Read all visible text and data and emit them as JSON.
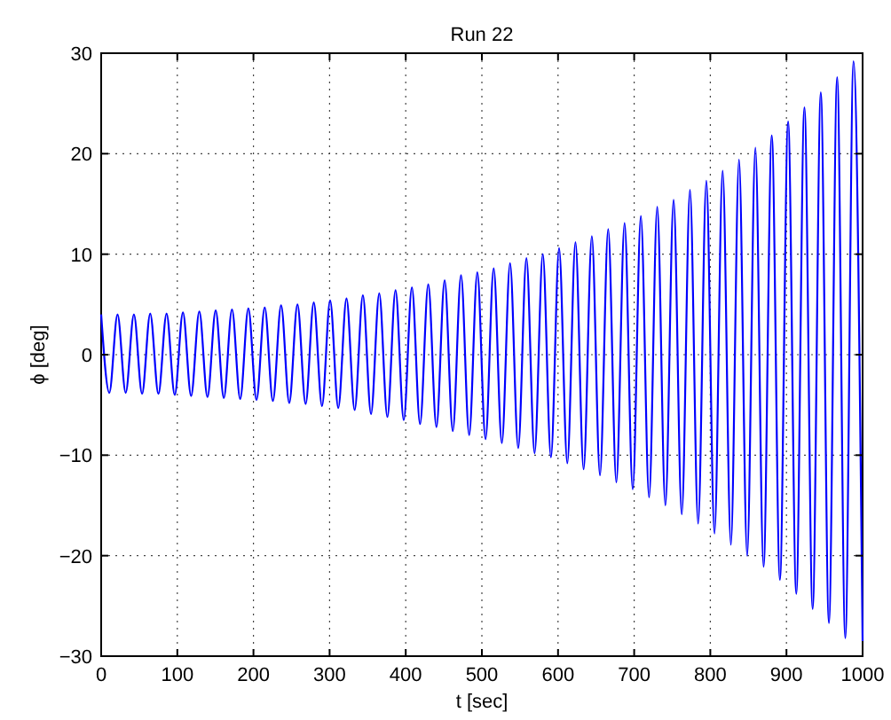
{
  "chart_data": {
    "type": "line",
    "title": "Run 22",
    "xlabel": "t [sec]",
    "ylabel": "ϕ [deg]",
    "xlim": [
      0,
      1000
    ],
    "xticks": [
      0,
      100,
      200,
      300,
      400,
      500,
      600,
      700,
      800,
      900,
      1000
    ],
    "ylim": [
      -30,
      30
    ],
    "yticks": [
      -30,
      -20,
      -10,
      0,
      10,
      20,
      30
    ],
    "grid": true,
    "marker": "none",
    "line_style": "solid",
    "series": [
      {
        "color": "#0000ff",
        "x": [
          0,
          10.7,
          21.5,
          32.2,
          43.0,
          53.7,
          64.4,
          75.2,
          85.9,
          96.6,
          107.4,
          118.1,
          128.9,
          139.6,
          150.4,
          161.1,
          171.8,
          182.6,
          193.3,
          204.0,
          214.8,
          225.5,
          236.3,
          247.0,
          257.8,
          268.5,
          279.2,
          290.0,
          300.7,
          311.4,
          322.2,
          332.9,
          343.7,
          354.4,
          365.2,
          375.9,
          386.6,
          397.4,
          408.1,
          418.8,
          429.6,
          440.3,
          451.1,
          461.8,
          472.6,
          483.3,
          494.0,
          504.8,
          515.5,
          526.2,
          537.0,
          547.7,
          558.5,
          569.2,
          580.0,
          590.7,
          601.4,
          612.2,
          622.9,
          633.6,
          644.4,
          655.1,
          665.9,
          676.6,
          687.4,
          698.1,
          708.8,
          719.6,
          730.3,
          741.0,
          751.8,
          762.5,
          773.3,
          784.0,
          794.8,
          805.5,
          816.2,
          827.0,
          837.7,
          848.4,
          859.2,
          869.9,
          880.7,
          891.4,
          902.2,
          912.9,
          923.6,
          934.4,
          945.1,
          955.8,
          966.6,
          977.3,
          988.1,
          1000
        ],
        "values": [
          4.0,
          -3.8,
          4.0,
          -3.8,
          4.0,
          -3.9,
          4.1,
          -3.9,
          4.1,
          -4.0,
          4.2,
          -4.1,
          4.3,
          -4.2,
          4.4,
          -4.3,
          4.5,
          -4.4,
          4.6,
          -4.5,
          4.7,
          -4.6,
          4.9,
          -4.8,
          5.0,
          -4.9,
          5.2,
          -5.1,
          5.4,
          -5.3,
          5.6,
          -5.5,
          5.9,
          -5.9,
          6.1,
          -6.2,
          6.4,
          -6.5,
          6.7,
          -6.9,
          7.0,
          -7.2,
          7.4,
          -7.6,
          7.9,
          -8.0,
          8.2,
          -8.4,
          8.6,
          -8.8,
          9.1,
          -9.3,
          9.6,
          -9.8,
          10.0,
          -10.2,
          10.6,
          -10.8,
          11.2,
          -11.4,
          11.8,
          -12.0,
          12.5,
          -12.7,
          13.1,
          -13.4,
          13.8,
          -14.2,
          14.7,
          -15.0,
          15.4,
          -15.9,
          16.4,
          -16.8,
          17.3,
          -17.8,
          18.3,
          -18.9,
          19.4,
          -20.0,
          20.6,
          -21.1,
          21.8,
          -22.4,
          23.2,
          -23.8,
          24.6,
          -25.3,
          26.1,
          -26.7,
          27.6,
          -28.2,
          29.2,
          -28.5
        ]
      }
    ]
  }
}
